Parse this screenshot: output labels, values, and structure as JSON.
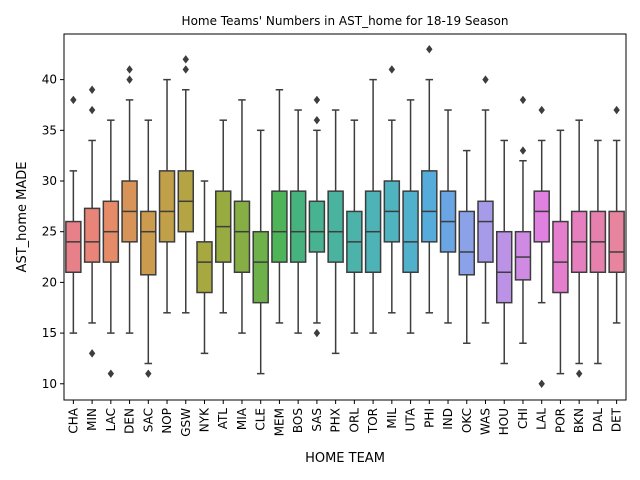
{
  "chart_data": {
    "type": "box",
    "title": "Home Teams' Numbers in AST_home for 18-19 Season",
    "xlabel": "HOME TEAM",
    "ylabel": "AST_home MADE",
    "ylim": [
      8.4,
      44.5
    ],
    "yticks": [
      10,
      15,
      20,
      25,
      30,
      35,
      40
    ],
    "grid": false,
    "boxes": [
      {
        "team": "CHA",
        "color": "#e8808a",
        "whislo": 15,
        "q1": 21,
        "med": 24,
        "q3": 26,
        "whishi": 31,
        "fliers": [
          38
        ]
      },
      {
        "team": "MIN",
        "color": "#e88478",
        "whislo": 16,
        "q1": 22,
        "med": 24,
        "q3": 27.3,
        "whishi": 34,
        "fliers": [
          37,
          39,
          13
        ]
      },
      {
        "team": "LAC",
        "color": "#e58b68",
        "whislo": 15,
        "q1": 22,
        "med": 25,
        "q3": 28,
        "whishi": 36,
        "fliers": [
          11
        ]
      },
      {
        "team": "DEN",
        "color": "#d89458",
        "whislo": 15,
        "q1": 24,
        "med": 27,
        "q3": 30,
        "whishi": 38,
        "fliers": [
          40,
          41
        ]
      },
      {
        "team": "SAC",
        "color": "#cc9b4e",
        "whislo": 12,
        "q1": 20.75,
        "med": 25,
        "q3": 27,
        "whishi": 36,
        "fliers": [
          11
        ]
      },
      {
        "team": "NOP",
        "color": "#c1a049",
        "whislo": 17,
        "q1": 24,
        "med": 27,
        "q3": 31,
        "whishi": 40,
        "fliers": []
      },
      {
        "team": "GSW",
        "color": "#b5a444",
        "whislo": 17,
        "q1": 25,
        "med": 28,
        "q3": 31,
        "whishi": 39,
        "fliers": [
          41,
          42
        ]
      },
      {
        "team": "NYK",
        "color": "#a8a840",
        "whislo": 13,
        "q1": 19,
        "med": 22,
        "q3": 24,
        "whishi": 30,
        "fliers": []
      },
      {
        "team": "ATL",
        "color": "#98ab40",
        "whislo": 17,
        "q1": 22,
        "med": 25.5,
        "q3": 29,
        "whishi": 36,
        "fliers": []
      },
      {
        "team": "MIA",
        "color": "#86ae44",
        "whislo": 15,
        "q1": 21,
        "med": 25,
        "q3": 28,
        "whishi": 38,
        "fliers": []
      },
      {
        "team": "CLE",
        "color": "#6eb14a",
        "whislo": 11,
        "q1": 18,
        "med": 22,
        "q3": 25,
        "whishi": 35,
        "fliers": []
      },
      {
        "team": "MEM",
        "color": "#4db45a",
        "whislo": 16,
        "q1": 22,
        "med": 25,
        "q3": 29,
        "whishi": 39,
        "fliers": []
      },
      {
        "team": "BOS",
        "color": "#46b37e",
        "whislo": 15,
        "q1": 22,
        "med": 25,
        "q3": 29,
        "whishi": 37,
        "fliers": []
      },
      {
        "team": "SAS",
        "color": "#48b391",
        "whislo": 16,
        "q1": 23,
        "med": 25,
        "q3": 28,
        "whishi": 35,
        "fliers": [
          36,
          38,
          15
        ]
      },
      {
        "team": "PHX",
        "color": "#4ab39f",
        "whislo": 13,
        "q1": 22,
        "med": 25,
        "q3": 29,
        "whishi": 37,
        "fliers": []
      },
      {
        "team": "ORL",
        "color": "#4cb3ab",
        "whislo": 15,
        "q1": 21,
        "med": 24,
        "q3": 27,
        "whishi": 36,
        "fliers": []
      },
      {
        "team": "TOR",
        "color": "#4db3b6",
        "whislo": 15,
        "q1": 21,
        "med": 25,
        "q3": 29,
        "whishi": 40,
        "fliers": []
      },
      {
        "team": "MIL",
        "color": "#4fb3c0",
        "whislo": 17,
        "q1": 24,
        "med": 27,
        "q3": 30,
        "whishi": 36,
        "fliers": [
          41
        ]
      },
      {
        "team": "UTA",
        "color": "#51b1cc",
        "whislo": 15,
        "q1": 21,
        "med": 24,
        "q3": 29,
        "whishi": 38,
        "fliers": []
      },
      {
        "team": "PHI",
        "color": "#55abd9",
        "whislo": 17,
        "q1": 24,
        "med": 27,
        "q3": 31,
        "whishi": 40,
        "fliers": [
          43
        ]
      },
      {
        "team": "IND",
        "color": "#6ba6e4",
        "whislo": 16,
        "q1": 23,
        "med": 26,
        "q3": 29,
        "whishi": 37,
        "fliers": []
      },
      {
        "team": "OKC",
        "color": "#8ba1e8",
        "whislo": 14,
        "q1": 20.75,
        "med": 23,
        "q3": 27,
        "whishi": 33,
        "fliers": []
      },
      {
        "team": "WAS",
        "color": "#a59be8",
        "whislo": 16,
        "q1": 22,
        "med": 26,
        "q3": 28,
        "whishi": 37,
        "fliers": [
          40
        ]
      },
      {
        "team": "HOU",
        "color": "#bb92e6",
        "whislo": 12,
        "q1": 18,
        "med": 21,
        "q3": 25,
        "whishi": 34,
        "fliers": []
      },
      {
        "team": "CHI",
        "color": "#cf8ae4",
        "whislo": 14,
        "q1": 20.25,
        "med": 22.5,
        "q3": 25,
        "whishi": 32,
        "fliers": [
          33,
          38
        ]
      },
      {
        "team": "LAL",
        "color": "#e080e0",
        "whislo": 18,
        "q1": 24,
        "med": 27,
        "q3": 29,
        "whishi": 34,
        "fliers": [
          37,
          10
        ]
      },
      {
        "team": "POR",
        "color": "#e67ece",
        "whislo": 11,
        "q1": 19,
        "med": 22,
        "q3": 26,
        "whishi": 35,
        "fliers": []
      },
      {
        "team": "BKN",
        "color": "#e67fbe",
        "whislo": 12,
        "q1": 21,
        "med": 24,
        "q3": 27,
        "whishi": 36,
        "fliers": [
          11
        ]
      },
      {
        "team": "DAL",
        "color": "#e681ae",
        "whislo": 12,
        "q1": 21,
        "med": 24,
        "q3": 27,
        "whishi": 34,
        "fliers": []
      },
      {
        "team": "DET",
        "color": "#e7849e",
        "whislo": 16,
        "q1": 21,
        "med": 23,
        "q3": 27,
        "whishi": 34,
        "fliers": [
          37
        ]
      }
    ]
  }
}
